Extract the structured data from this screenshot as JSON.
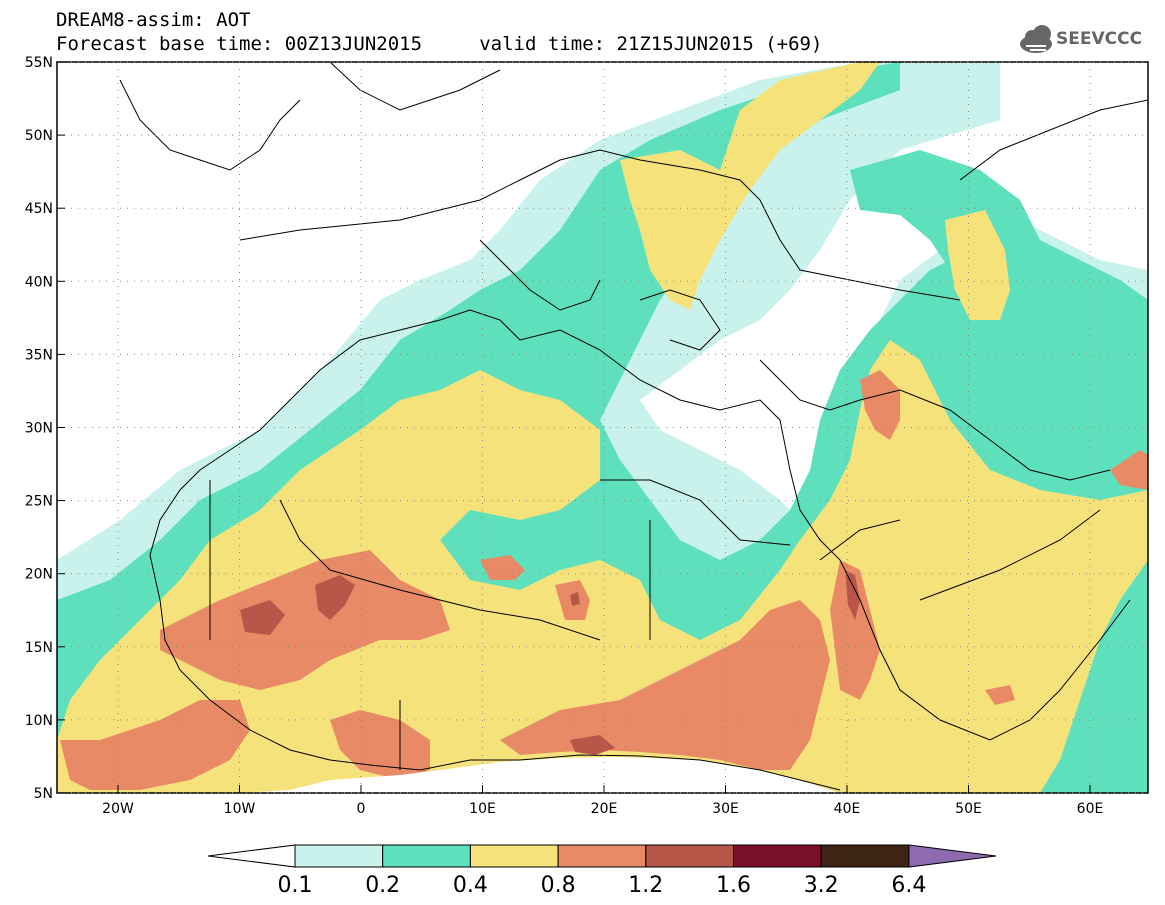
{
  "title": {
    "line1": "DREAM8-assim: AOT",
    "line2": "Forecast base time: 00Z13JUN2015     valid time: 21Z15JUN2015 (+69)"
  },
  "logo": {
    "text": "SEEVCCC"
  },
  "map": {
    "lat_labels": [
      "55N",
      "50N",
      "45N",
      "40N",
      "35N",
      "30N",
      "25N",
      "20N",
      "15N",
      "10N",
      "5N"
    ],
    "lon_labels": [
      "20W",
      "10W",
      "0",
      "10E",
      "20E",
      "30E",
      "40E",
      "50E",
      "60E"
    ]
  },
  "legend": {
    "levels": [
      "0.1",
      "0.2",
      "0.4",
      "0.8",
      "1.2",
      "1.6",
      "3.2",
      "6.4"
    ],
    "colors": [
      "#c9f2ec",
      "#5fe0bd",
      "#f5e27a",
      "#e88a66",
      "#b8564a",
      "#7a0f2b",
      "#3d2414",
      "#8e6bb0"
    ]
  },
  "colors": {
    "land_background": "#ffffff",
    "border": "#000000"
  }
}
